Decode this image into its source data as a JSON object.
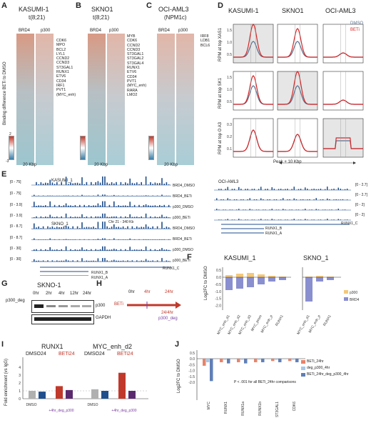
{
  "panels": {
    "A": "A",
    "B": "B",
    "C": "C",
    "D": "D",
    "E": "E",
    "F": "F",
    "G": "G",
    "H": "H",
    "I": "I",
    "J": "J"
  },
  "heatmaps": [
    {
      "title": "KASUMI-1",
      "subtitle": "t(8;21)",
      "col1": "BRD4",
      "col2": "p300",
      "scale": "20 Kbp",
      "genes": [
        "CDK6",
        "MPO",
        "BCL2",
        "LYL1",
        "CCND2",
        "CCND3",
        "ST3GAL1",
        "RUNX1",
        "ETV6",
        "CD34",
        "IRF1",
        "PVT1",
        "(MYC_enh)"
      ]
    },
    {
      "title": "SKNO1",
      "subtitle": "t(8;21)",
      "col1": "BRD4",
      "col2": "p300",
      "scale": "20 Kbp",
      "genes": [
        "MYB",
        "CDK6",
        "CCND2",
        "CCND3",
        "ST3GAL1",
        "ST3GAL2",
        "ST3GAL4",
        "RUNX1",
        "ETV6",
        "CD34",
        "PVT1",
        "(MYC_enh)",
        "RARA",
        "LMO2"
      ]
    },
    {
      "title": "OCI-AML3",
      "subtitle": "(NPM1c)",
      "col1": "BRD4",
      "col2": "p300",
      "scale": "20 Kbp",
      "genes": [
        "IRF8",
        "LDB1",
        "BCL6"
      ]
    }
  ],
  "heatmap_ylabel": "Binding difference BETi to DMSO",
  "colorbar": {
    "top": "2",
    "bottom": "-3",
    "mid": "0"
  },
  "profiles": {
    "columns": [
      "KASUMI-1",
      "SKNO1",
      "OCI-AML3"
    ],
    "rows": [
      "RPM at top XAS1",
      "RPM at top SK1",
      "RPM at top O A3"
    ],
    "legend": [
      "DMSO",
      "BETi"
    ],
    "xlabel": "Peak + 10 Kbp",
    "ticks_top": [
      "1.5",
      "1.0",
      "0.5"
    ],
    "ticks_mid": [
      "1.5",
      "1.0",
      "0.5"
    ],
    "ticks_bot": [
      "0.3",
      "0.2",
      "0.1"
    ]
  },
  "tracks": {
    "left": [
      {
        "range": "[0 - 75]",
        "name": "BRD4_DMSO",
        "cell": "KASUMI_1"
      },
      {
        "range": "[0 - 75]",
        "name": "BRD4_BETi"
      },
      {
        "range": "[0 - 3.9]",
        "name": "p300_DMSO"
      },
      {
        "range": "[0 - 3.9]",
        "name": "p300_BETi"
      },
      {
        "range": "[0 - 8.7]",
        "name": "BRD4_DMSO",
        "cell": "SKNO_1"
      },
      {
        "range": "[0 - 8.7]",
        "name": "BRD4_BETi"
      },
      {
        "range": "[0 - 30]",
        "name": "p300_DMSO"
      },
      {
        "range": "[0 - 30]",
        "name": "p300_BETi"
      }
    ],
    "right": [
      {
        "range": "[0 - 2.7]",
        "cell": "OCI-AML3"
      },
      {
        "range": "[0 - 2.7]"
      },
      {
        "range": "[0 - 2]"
      },
      {
        "range": "[0 - 2]"
      }
    ],
    "chr": "Chr 21 - 340 Kb",
    "genes_left": [
      "RUNX1_C",
      "RUNX1_B",
      "RUNX1_A"
    ],
    "genes_right": [
      "RUNX1_C",
      "RUNX1_B",
      "RUNX1_A"
    ]
  },
  "barF": {
    "titles": [
      "KASUMI_1",
      "SKNO_1"
    ],
    "ylabel": "Log2FC to DMSO",
    "yticks": [
      "0.5",
      "0.0",
      "-0.5",
      "-1.0",
      "-1.5",
      "-2.0"
    ],
    "legend": [
      "p300",
      "BRD4"
    ],
    "cats_k": [
      "MYC_enh_d1",
      "MYC_enh_d2",
      "MYC_enh_d3",
      "MYC_prom",
      "MYC_enh_p",
      "RUNX1"
    ],
    "cats_s": [
      "MYC_enh_d1",
      "MYC_enh_p",
      "RUNX1"
    ],
    "colors": {
      "p300": "#f4c87a",
      "BRD4": "#8a8fcf"
    }
  },
  "blot": {
    "title": "SKNO-1",
    "lanes": [
      "0hr",
      "2hr",
      "4hr",
      "12hr",
      "24hr"
    ],
    "left": "p300_deg",
    "bands": [
      "p300",
      "GAPDH"
    ]
  },
  "timeline": {
    "t0": "0hr",
    "t1": "4hr",
    "t2": "24hr",
    "drug": "BETi",
    "note1": "24/4hr",
    "note2": "p300_deg"
  },
  "barI": {
    "groups": [
      "RUNX1",
      "MYC_enh_d2"
    ],
    "sub": [
      "DMSO24",
      "BETi24"
    ],
    "ylabel": "Fold enrichment (vs IgG)",
    "yticks": [
      "4",
      "3",
      "2",
      "1",
      "0"
    ],
    "xcats": [
      "DMSO",
      "+4hr_deg_p300",
      "DMSO",
      "+4hr_deg_p300"
    ]
  },
  "barJ": {
    "ylabel": "Log2FC to DMSO",
    "yticks": [
      "0.5",
      "0.0",
      "-0.5",
      "-1.0",
      "-1.5",
      "-2.0"
    ],
    "cats": [
      "MYC",
      "RUNX1",
      "RUNX1a",
      "RUNX1b",
      "ST3GAL1",
      "CDK6"
    ],
    "legend": [
      "BETi_24hr",
      "deg_p300_4hr",
      "BETi_24hr_deg_p300_4hr"
    ],
    "note": "P < .001 for all BETi_24hr comparisons",
    "colors": [
      "#e8836a",
      "#a7c7e7",
      "#5f7fb8"
    ]
  }
}
